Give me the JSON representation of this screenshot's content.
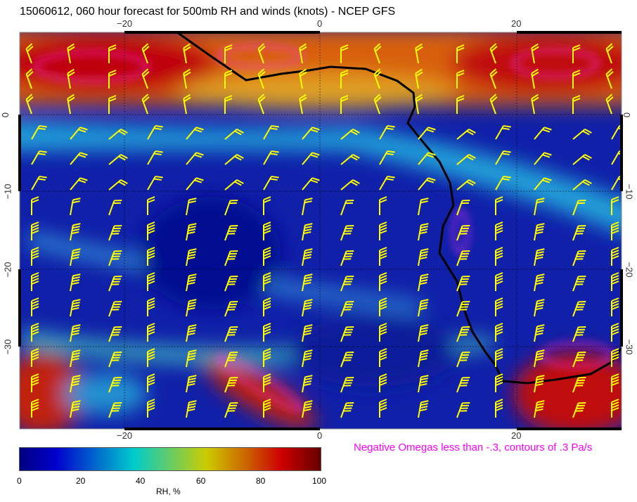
{
  "title": "15060612, 060 hour forecast for 500mb RH and winds (knots) - NCEP GFS",
  "map": {
    "lon_ticks": [
      "−20",
      "0",
      "20"
    ],
    "lat_ticks": [
      "0",
      "−10",
      "−20",
      "−30"
    ],
    "lon_range": [
      -30.6,
      30.7
    ],
    "lat_range": [
      -40.6,
      10.6
    ],
    "field": "RH, %",
    "contours": "Negative Omegas less than -.3, contours of .3 Pa/s",
    "colors": {
      "low": "#00007f",
      "mid": "#00cccc",
      "high": "#cc0000",
      "coast": "#000000",
      "barbs": "#ffff00",
      "omega": "#ff00ff"
    }
  },
  "colorbar": {
    "labels": [
      "0",
      "20",
      "40",
      "60",
      "80",
      "100"
    ],
    "title": "RH, %"
  },
  "omega_note": "Negative Omegas less than -.3, contours of .3 Pa/s"
}
